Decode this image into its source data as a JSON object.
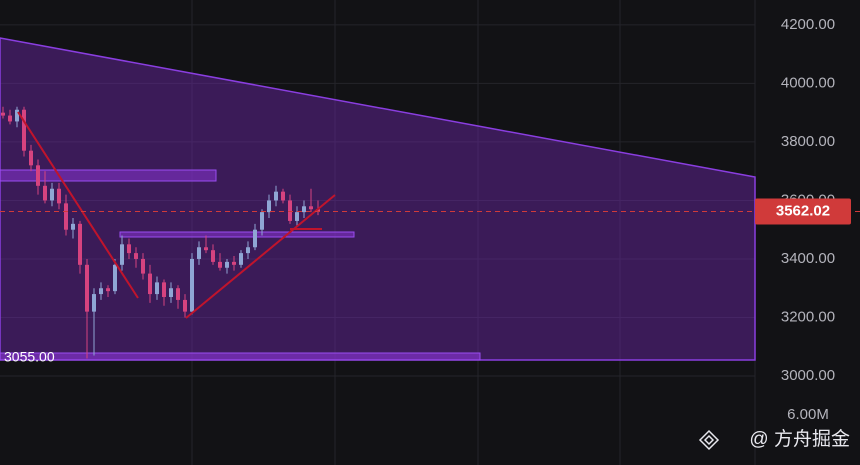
{
  "chart_data": {
    "type": "candlestick",
    "categories": [
      null,
      null,
      null,
      null,
      null,
      null,
      null,
      null,
      null,
      null,
      null,
      null,
      null,
      null,
      null,
      null,
      null,
      null,
      null,
      null,
      null,
      null,
      null,
      null,
      null,
      null,
      null,
      null,
      null,
      null,
      null,
      null,
      null,
      null,
      null,
      null,
      null,
      null,
      null,
      null,
      null,
      null,
      null,
      null,
      null,
      null
    ],
    "open": [
      3900,
      3890,
      3870,
      3910,
      3770,
      3720,
      3650,
      3600,
      3640,
      3590,
      3500,
      3520,
      3380,
      3220,
      3280,
      3300,
      3290,
      3380,
      3450,
      3420,
      3400,
      3350,
      3280,
      3320,
      3270,
      3300,
      3260,
      3220,
      3400,
      3440,
      3430,
      3390,
      3370,
      3390,
      3380,
      3420,
      3440,
      3500,
      3560,
      3600,
      3630,
      3600,
      3530,
      3560,
      3580,
      3570
    ],
    "high": [
      3920,
      3910,
      3920,
      3920,
      3790,
      3740,
      3700,
      3660,
      3660,
      3620,
      3540,
      3530,
      3400,
      3300,
      3320,
      3310,
      3400,
      3480,
      3470,
      3440,
      3420,
      3380,
      3340,
      3330,
      3320,
      3310,
      3280,
      3420,
      3460,
      3480,
      3450,
      3420,
      3400,
      3410,
      3430,
      3460,
      3520,
      3570,
      3620,
      3650,
      3640,
      3620,
      3580,
      3600,
      3640,
      3600
    ],
    "low": [
      3880,
      3860,
      3850,
      3750,
      3700,
      3620,
      3590,
      3580,
      3570,
      3480,
      3470,
      3350,
      3060,
      3070,
      3260,
      3270,
      3280,
      3360,
      3400,
      3370,
      3330,
      3250,
      3260,
      3240,
      3250,
      3230,
      3200,
      3210,
      3380,
      3420,
      3380,
      3360,
      3350,
      3360,
      3370,
      3400,
      3430,
      3480,
      3540,
      3580,
      3590,
      3520,
      3510,
      3540,
      3560,
      3550
    ],
    "close": [
      3890,
      3870,
      3910,
      3770,
      3720,
      3650,
      3600,
      3640,
      3590,
      3500,
      3520,
      3380,
      3220,
      3280,
      3300,
      3290,
      3380,
      3450,
      3420,
      3400,
      3350,
      3280,
      3320,
      3270,
      3300,
      3260,
      3220,
      3400,
      3440,
      3430,
      3390,
      3370,
      3390,
      3380,
      3420,
      3440,
      3500,
      3560,
      3600,
      3630,
      3600,
      3530,
      3560,
      3580,
      3570,
      3562.02
    ],
    "up_color": "#8fa6d4",
    "down_color": "#d6437f",
    "ylim": [
      2918,
      4285
    ],
    "yticks": [
      {
        "value": 3000,
        "label": "3000.00"
      },
      {
        "value": 3200,
        "label": "3200.00"
      },
      {
        "value": 3400,
        "label": "3400.00"
      },
      {
        "value": 3600,
        "label": "3600.00"
      },
      {
        "value": 3800,
        "label": "3800.00"
      },
      {
        "value": 4000,
        "label": "4000.00"
      },
      {
        "value": 4200,
        "label": "4200.00"
      }
    ],
    "grid": true,
    "last_price": 3562.02,
    "last_price_label": "3562.02",
    "support_label": "3055.00",
    "volume_label": "6.00M",
    "watermark": "@ 方舟掘金"
  }
}
